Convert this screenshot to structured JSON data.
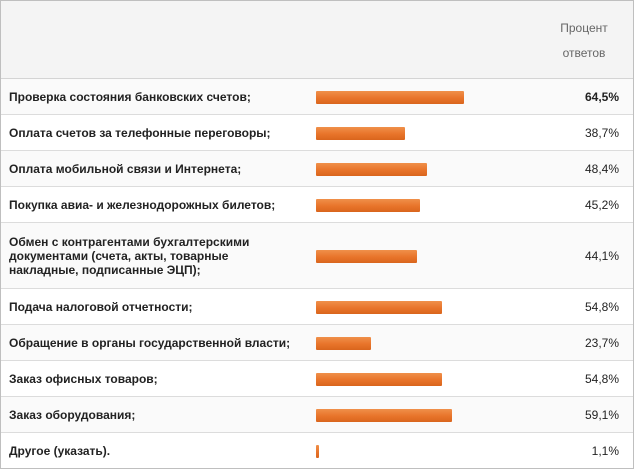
{
  "header": {
    "column_title_line1": "Процент",
    "column_title_line2": "ответов"
  },
  "chart_data": {
    "type": "bar",
    "orientation": "horizontal",
    "title": "",
    "xlabel": "",
    "ylabel": "",
    "value_unit": "%",
    "xlim": [
      0,
      100
    ],
    "bar_color": "#e8742a",
    "categories": [
      "Проверка состояния банковских счетов;",
      "Оплата счетов за телефонные переговоры;",
      "Оплата мобильной связи и Интернета;",
      "Покупка авиа- и железнодорожных билетов;",
      "Обмен с контрагентами бухгалтерскими документами (счета, акты, товарные накладные, подписанные ЭЦП);",
      "Подача налоговой отчетности;",
      "Обращение в органы государственной власти;",
      "Заказ офисных товаров;",
      "Заказ оборудования;",
      "Другое (указать)."
    ],
    "values": [
      64.5,
      38.7,
      48.4,
      45.2,
      44.1,
      54.8,
      23.7,
      54.8,
      59.1,
      1.1
    ],
    "value_labels": [
      "64,5%",
      "38,7%",
      "48,4%",
      "45,2%",
      "44,1%",
      "54,8%",
      "23,7%",
      "54,8%",
      "59,1%",
      "1,1%"
    ],
    "highlighted_index": 0
  }
}
